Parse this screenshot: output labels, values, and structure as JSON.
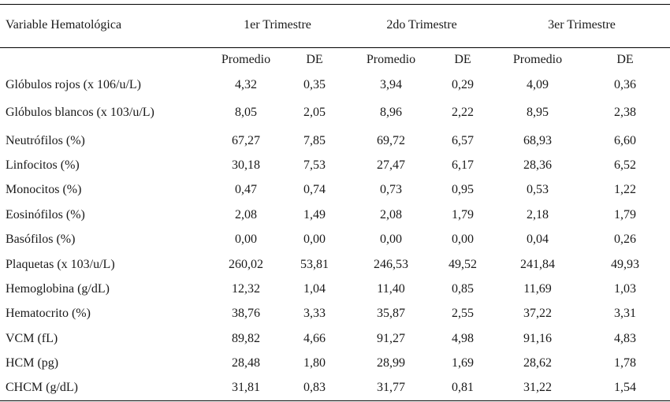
{
  "table": {
    "header": {
      "variable": "Variable Hematológica",
      "groups": [
        "1er  Trimestre",
        "2do Trimestre",
        "3er Trimestre"
      ],
      "subheaders": [
        "Promedio",
        "DE",
        "Promedio",
        "DE",
        "Promedio",
        "DE"
      ]
    },
    "rows": [
      {
        "label": "Glóbulos rojos (x 106/u/L)",
        "values": [
          "4,32",
          "0,35",
          "3,94",
          "0,29",
          "4,09",
          "0,36"
        ]
      },
      {
        "label": "Glóbulos blancos (x 103/u/L)",
        "values": [
          "8,05",
          "2,05",
          "8,96",
          "2,22",
          "8,95",
          "2,38"
        ]
      },
      {
        "label": "Neutrófilos (%)",
        "values": [
          "67,27",
          "7,85",
          "69,72",
          "6,57",
          "68,93",
          "6,60"
        ]
      },
      {
        "label": "Linfocitos (%)",
        "values": [
          "30,18",
          "7,53",
          "27,47",
          "6,17",
          "28,36",
          "6,52"
        ]
      },
      {
        "label": "Monocitos (%)",
        "values": [
          "0,47",
          "0,74",
          "0,73",
          "0,95",
          "0,53",
          "1,22"
        ]
      },
      {
        "label": "Eosinófilos (%)",
        "values": [
          "2,08",
          "1,49",
          "2,08",
          "1,79",
          "2,18",
          "1,79"
        ]
      },
      {
        "label": "Basófilos (%)",
        "values": [
          "0,00",
          "0,00",
          "0,00",
          "0,00",
          "0,04",
          "0,26"
        ]
      },
      {
        "label": "Plaquetas (x 103/u/L)",
        "values": [
          "260,02",
          "53,81",
          "246,53",
          "49,52",
          "241,84",
          "49,93"
        ]
      },
      {
        "label": "Hemoglobina (g/dL)",
        "values": [
          "12,32",
          "1,04",
          "11,40",
          "0,85",
          "11,69",
          "1,03"
        ]
      },
      {
        "label": "Hematocrito (%)",
        "values": [
          "38,76",
          "3,33",
          "35,87",
          "2,55",
          "37,22",
          "3,31"
        ]
      },
      {
        "label": "VCM (fL)",
        "values": [
          "89,82",
          "4,66",
          "91,27",
          "4,98",
          "91,16",
          "4,83"
        ]
      },
      {
        "label": "HCM (pg)",
        "values": [
          "28,48",
          "1,80",
          "28,99",
          "1,69",
          "28,62",
          "1,78"
        ]
      },
      {
        "label": "CHCM (g/dL)",
        "values": [
          "31,81",
          "0,83",
          "31,77",
          "0,81",
          "31,22",
          "1,54"
        ]
      }
    ]
  }
}
